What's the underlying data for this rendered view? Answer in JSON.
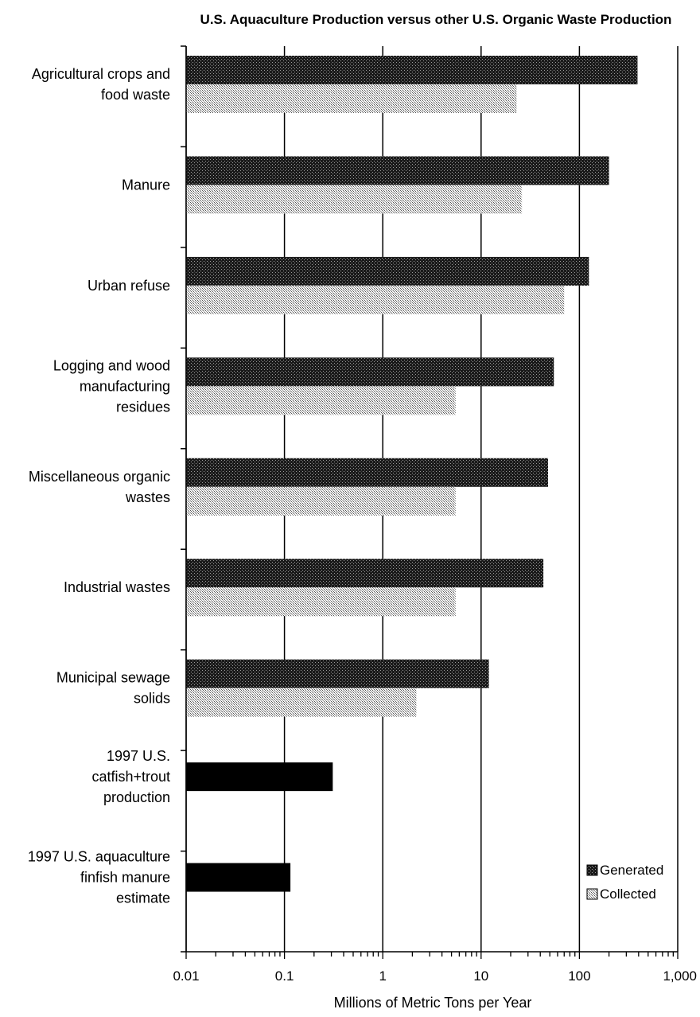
{
  "chart_data": {
    "type": "bar",
    "orientation": "horizontal",
    "title": "U.S. Aquaculture Production versus other U.S. Organic Waste Production",
    "xlabel": "Millions of Metric Tons per Year",
    "ylabel": "",
    "xscale": "log",
    "xlim": [
      0.01,
      1000
    ],
    "xticks": [
      "0.01",
      "0.1",
      "1",
      "10",
      "100",
      "1,000"
    ],
    "grid": "vertical major gridlines",
    "legend_position": "bottom-right",
    "categories": [
      [
        "Agricultural crops and",
        "food waste"
      ],
      [
        "Manure"
      ],
      [
        "Urban refuse"
      ],
      [
        "Logging and wood",
        "manufacturing",
        "residues"
      ],
      [
        "Miscellaneous organic",
        "wastes"
      ],
      [
        "Industrial wastes"
      ],
      [
        "Municipal sewage",
        "solids"
      ],
      [
        "1997 U.S.",
        "catfish+trout",
        "production"
      ],
      [
        "1997 U.S. aquaculture",
        "finfish manure",
        "estimate"
      ]
    ],
    "series": [
      {
        "name": "Generated",
        "color": "#2a2a2a",
        "values": [
          390,
          200,
          125,
          55,
          48,
          43,
          12,
          null,
          null
        ]
      },
      {
        "name": "Collected",
        "color": "#cccccc",
        "values": [
          23,
          26,
          70,
          5.5,
          5.5,
          5.5,
          2.2,
          null,
          null
        ]
      },
      {
        "color": "#000000",
        "values": [
          null,
          null,
          null,
          null,
          null,
          null,
          null,
          0.31,
          0.115
        ]
      }
    ]
  }
}
